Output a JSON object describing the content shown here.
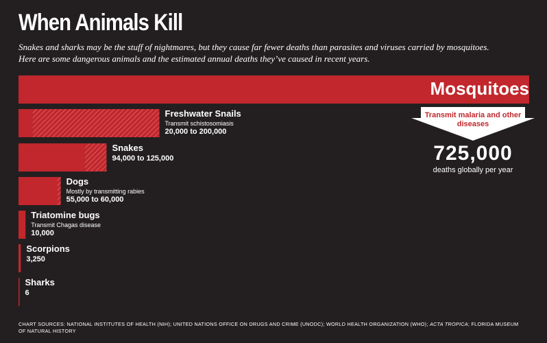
{
  "title": "When Animals Kill",
  "subtitle": "Snakes and sharks may be the stuff of nightmares, but they cause far fewer deaths than parasites and viruses carried by mosquitoes. Here are some dangerous animals and the estimated annual deaths they’ve caused in recent years.",
  "colors": {
    "background": "#231f20",
    "bar": "#c1272d",
    "text": "#ffffff"
  },
  "chart_data": {
    "type": "bar",
    "orientation": "horizontal",
    "categories": [
      "Mosquitoes",
      "Freshwater Snails",
      "Snakes",
      "Dogs",
      "Triatomine bugs",
      "Scorpions",
      "Sharks"
    ],
    "low": [
      725000,
      20000,
      94000,
      55000,
      10000,
      3250,
      6
    ],
    "high": [
      725000,
      200000,
      125000,
      60000,
      10000,
      3250,
      6
    ],
    "notes": [
      "Transmit malaria and other diseases",
      "Transmit schistosomiasis",
      "",
      "Mostly by transmitting rabies",
      "Transmit Chagas disease",
      "",
      ""
    ],
    "range_labels": [
      "725,000",
      "20,000 to 200,000",
      "94,000 to 125,000",
      "55,000 to 60,000",
      "10,000",
      "3,250",
      "6"
    ]
  },
  "mosquito_callout": {
    "label": "Mosquitoes",
    "arrow_text": "Transmit malaria and other diseases",
    "big_number": "725,000",
    "big_sub": "deaths globally per year"
  },
  "footer": {
    "prefix": "CHART SOURCES: NATIONAL INSTITUTES OF HEALTH (NIH); UNITED NATIONS OFFICE ON DRUGS AND CRIME (UNODC); WORLD HEALTH ORGANIZATION (WHO); ",
    "italic": "ACTA TROPICA",
    "suffix": "; FLORIDA MUSEUM OF NATURAL HISTORY"
  }
}
